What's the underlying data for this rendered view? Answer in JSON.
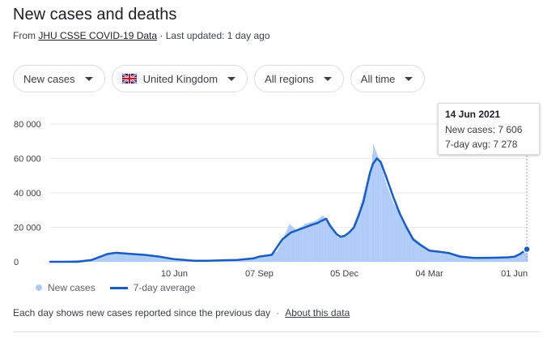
{
  "header": {
    "title": "New cases and deaths",
    "source_prefix": "From ",
    "source_link": "JHU CSSE COVID-19 Data",
    "updated": " · Last updated: 1 day ago"
  },
  "filters": {
    "metric": "New cases",
    "country": "United Kingdom",
    "region": "All regions",
    "time": "All time"
  },
  "tooltip": {
    "date": "14 Jun 2021",
    "cases": "New cases: 7 606",
    "avg": "7-day avg: 7 278"
  },
  "legend": {
    "cases": "New cases",
    "avg": "7-day average"
  },
  "footer": {
    "note": "Each day shows new cases reported since the previous day",
    "separator": "·",
    "about": "About this data"
  },
  "colors": {
    "bars": "#aecbfa",
    "line": "#1a5cbf",
    "grid": "#e8eaed"
  },
  "chart_data": {
    "type": "area",
    "title": "",
    "xlabel": "",
    "ylabel": "",
    "ylim": [
      0,
      80000
    ],
    "yticks": [
      0,
      20000,
      40000,
      60000,
      80000
    ],
    "ytick_labels": [
      "0",
      "20 000",
      "40 000",
      "60 000",
      "80 000"
    ],
    "xticks": [
      "10 Jun",
      "07 Sep",
      "05 Dec",
      "04 Mar",
      "01 Jun"
    ],
    "xtick_dates": [
      "2020-06-10",
      "2020-09-07",
      "2020-12-05",
      "2021-03-04",
      "2021-06-01"
    ],
    "x_range": [
      "2020-02-01",
      "2021-06-14"
    ],
    "grid": true,
    "legend_position": "bottom-left",
    "series": [
      {
        "name": "7-day average",
        "x": [
          "2020-02-01",
          "2020-03-01",
          "2020-03-15",
          "2020-04-01",
          "2020-04-10",
          "2020-04-25",
          "2020-05-10",
          "2020-05-25",
          "2020-06-10",
          "2020-07-01",
          "2020-07-15",
          "2020-08-01",
          "2020-08-15",
          "2020-09-01",
          "2020-09-07",
          "2020-09-20",
          "2020-10-01",
          "2020-10-10",
          "2020-10-20",
          "2020-10-25",
          "2020-11-01",
          "2020-11-07",
          "2020-11-10",
          "2020-11-16",
          "2020-11-20",
          "2020-11-27",
          "2020-12-01",
          "2020-12-05",
          "2020-12-10",
          "2020-12-15",
          "2020-12-20",
          "2020-12-25",
          "2020-12-29",
          "2021-01-01",
          "2021-01-04",
          "2021-01-08",
          "2021-01-12",
          "2021-01-18",
          "2021-01-25",
          "2021-02-01",
          "2021-02-08",
          "2021-02-15",
          "2021-02-22",
          "2021-03-04",
          "2021-03-15",
          "2021-03-25",
          "2021-04-05",
          "2021-04-20",
          "2021-05-05",
          "2021-05-15",
          "2021-05-25",
          "2021-06-01",
          "2021-06-07",
          "2021-06-14"
        ],
        "values": [
          0,
          0,
          1000,
          4500,
          5200,
          4600,
          4000,
          3000,
          1500,
          600,
          600,
          900,
          1100,
          2000,
          3000,
          4000,
          13000,
          17000,
          19000,
          20000,
          21500,
          22500,
          23500,
          25000,
          21000,
          16000,
          14500,
          15000,
          17000,
          20000,
          27000,
          35000,
          45000,
          52000,
          57000,
          60000,
          58000,
          49000,
          38000,
          28000,
          20000,
          13000,
          10000,
          6500,
          5800,
          5000,
          3000,
          2200,
          2300,
          2400,
          2600,
          2900,
          4500,
          7278
        ]
      },
      {
        "name": "New cases",
        "x": [
          "2020-02-01",
          "2020-03-15",
          "2020-04-05",
          "2020-04-25",
          "2020-05-20",
          "2020-06-10",
          "2020-07-15",
          "2020-08-15",
          "2020-09-07",
          "2020-09-25",
          "2020-10-01",
          "2020-10-08",
          "2020-10-15",
          "2020-10-25",
          "2020-11-05",
          "2020-11-12",
          "2020-11-20",
          "2020-11-28",
          "2020-12-05",
          "2020-12-12",
          "2020-12-20",
          "2020-12-29",
          "2021-01-02",
          "2021-01-04",
          "2021-01-08",
          "2021-01-12",
          "2021-01-18",
          "2021-01-25",
          "2021-02-05",
          "2021-02-15",
          "2021-03-04",
          "2021-03-25",
          "2021-04-20",
          "2021-05-15",
          "2021-06-01",
          "2021-06-07",
          "2021-06-14"
        ],
        "values": [
          0,
          1500,
          5500,
          4800,
          3000,
          1300,
          700,
          1000,
          2500,
          6000,
          13000,
          22000,
          18500,
          22000,
          24000,
          27000,
          22000,
          14000,
          15500,
          18000,
          30000,
          48000,
          57000,
          68000,
          62000,
          56000,
          44000,
          34000,
          24000,
          14000,
          6500,
          5000,
          2200,
          2400,
          3200,
          5500,
          7606
        ]
      }
    ]
  }
}
